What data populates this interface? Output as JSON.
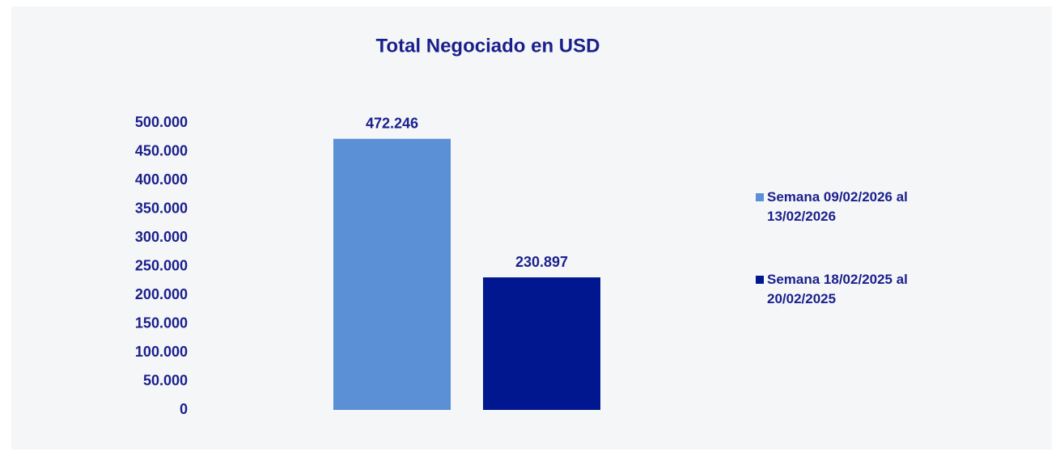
{
  "chart_data": {
    "type": "bar",
    "title": "Total Negociado en USD",
    "categories": [
      null
    ],
    "series": [
      {
        "name": "Semana 09/02/2026 al 13/02/2026",
        "color": "#5b8fd6",
        "values": [
          472246
        ],
        "value_labels": [
          "472.246"
        ]
      },
      {
        "name": "Semana 18/02/2025 al 20/02/2025",
        "color": "#00178f",
        "values": [
          230897
        ],
        "value_labels": [
          "230.897"
        ]
      }
    ],
    "ylim": [
      0,
      500000
    ],
    "yticks": [
      0,
      {
        "value": 50000,
        "label": "50.000"
      },
      {
        "value": 100000,
        "label": "100.000"
      },
      {
        "value": 150000,
        "label": "150.000"
      },
      {
        "value": 200000,
        "label": "200.000"
      },
      {
        "value": 250000,
        "label": "250.000"
      },
      {
        "value": 300000,
        "label": "300.000"
      },
      {
        "value": 350000,
        "label": "350.000"
      },
      {
        "value": 400000,
        "label": "400.000"
      },
      {
        "value": 450000,
        "label": "450.000"
      },
      {
        "value": 500000,
        "label": "500.000"
      }
    ],
    "grid": false,
    "legend": "right"
  }
}
